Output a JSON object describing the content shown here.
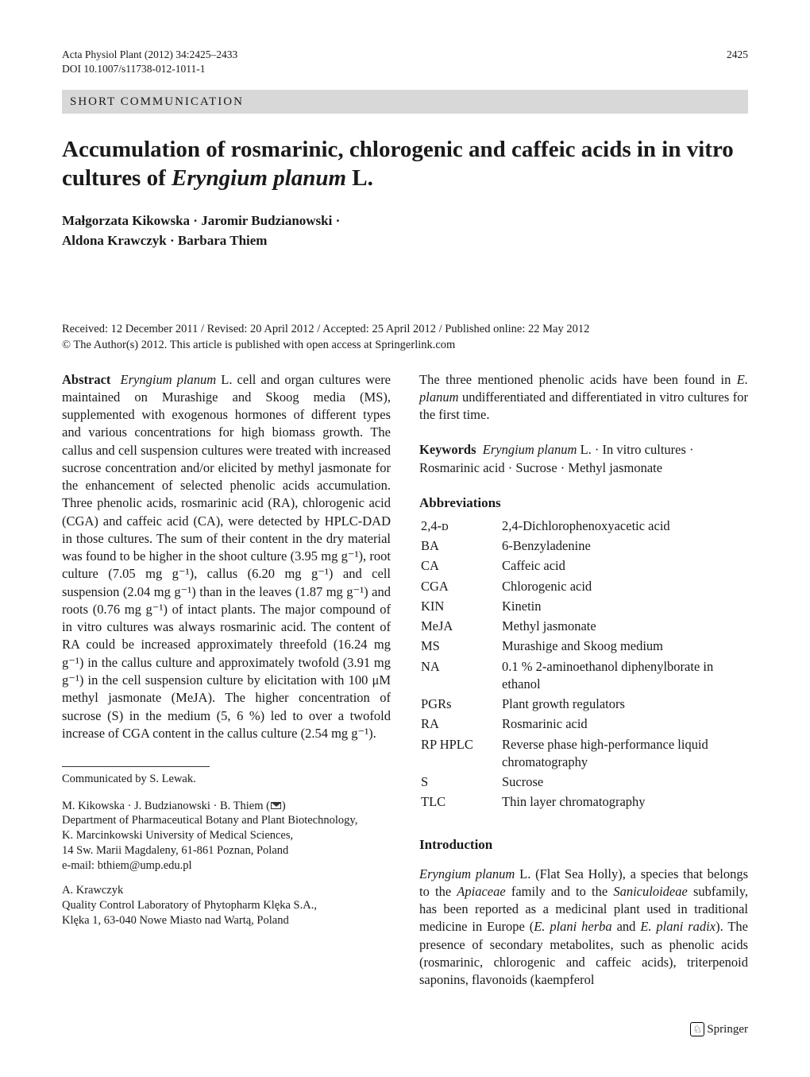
{
  "header": {
    "journal_line": "Acta Physiol Plant (2012) 34:2425–2433",
    "doi_line": "DOI 10.1007/s11738-012-1011-1",
    "page_number": "2425",
    "article_type": "SHORT COMMUNICATION"
  },
  "title_parts": {
    "pre": "Accumulation of rosmarinic, chlorogenic and caffeic acids in in vitro cultures of ",
    "species": "Eryngium planum",
    "post": " L."
  },
  "authors_line1": "Małgorzata Kikowska · Jaromir Budzianowski ·",
  "authors_line2": "Aldona Krawczyk · Barbara Thiem",
  "dates_line1": "Received: 12 December 2011 / Revised: 20 April 2012 / Accepted: 25 April 2012 / Published online: 22 May 2012",
  "dates_line2": "© The Author(s) 2012. This article is published with open access at Springerlink.com",
  "abstract": {
    "label": "Abstract",
    "lead_species": "Eryngium planum",
    "body": " L. cell and organ cultures were maintained on Murashige and Skoog media (MS), supplemented with exogenous hormones of different types and various concentrations for high biomass growth. The callus and cell suspension cultures were treated with increased sucrose concentration and/or elicited by methyl jasmonate for the enhancement of selected phenolic acids accumulation. Three phenolic acids, rosmarinic acid (RA), chlorogenic acid (CGA) and caffeic acid (CA), were detected by HPLC-DAD in those cultures. The sum of their content in the dry material was found to be higher in the shoot culture (3.95 mg g⁻¹), root culture (7.05 mg g⁻¹), callus (6.20 mg g⁻¹) and cell suspension (2.04 mg g⁻¹) than in the leaves (1.87 mg g⁻¹) and roots (0.76 mg g⁻¹) of intact plants. The major compound of in vitro cultures was always rosmarinic acid. The content of RA could be increased approximately threefold (16.24 mg g⁻¹) in the callus culture and approximately twofold (3.91 mg g⁻¹) in the cell suspension culture by elicitation with 100 μM methyl jasmonate (MeJA). The higher concentration of sucrose (S) in the medium (5, 6 %) led to over a twofold increase of CGA content in the callus culture (2.54 mg g⁻¹)."
  },
  "right_lead": {
    "text_pre": "The three mentioned phenolic acids have been found in ",
    "species": "E. planum",
    "text_post": " undifferentiated and differentiated in vitro cultures for the first time."
  },
  "keywords": {
    "label": "Keywords",
    "species": "Eryngium planum",
    "rest": " L. · In vitro cultures · Rosmarinic acid · Sucrose · Methyl jasmonate"
  },
  "abbrev_heading": "Abbreviations",
  "abbreviations": [
    {
      "k": "2,4-ᴅ",
      "v": "2,4-Dichlorophenoxyacetic acid"
    },
    {
      "k": "BA",
      "v": "6-Benzyladenine"
    },
    {
      "k": "CA",
      "v": "Caffeic acid"
    },
    {
      "k": "CGA",
      "v": "Chlorogenic acid"
    },
    {
      "k": "KIN",
      "v": "Kinetin"
    },
    {
      "k": "MeJA",
      "v": "Methyl jasmonate"
    },
    {
      "k": "MS",
      "v": "Murashige and Skoog medium"
    },
    {
      "k": "NA",
      "v": "0.1 % 2-aminoethanol diphenylborate in ethanol"
    },
    {
      "k": "PGRs",
      "v": "Plant growth regulators"
    },
    {
      "k": "RA",
      "v": "Rosmarinic acid"
    },
    {
      "k": "RP HPLC",
      "v": "Reverse phase high-performance liquid chromatography"
    },
    {
      "k": "S",
      "v": "Sucrose"
    },
    {
      "k": "TLC",
      "v": "Thin layer chromatography"
    }
  ],
  "intro_heading": "Introduction",
  "intro": {
    "species1": "Eryngium planum",
    "text1": " L. (Flat Sea Holly), a species that belongs to the ",
    "fam1": "Apiaceae",
    "text2": " family and to the ",
    "fam2": "Saniculoideae",
    "text3": " subfamily, has been reported as a medicinal plant used in traditional medicine in Europe (",
    "herba": "E. plani herba",
    "text4": " and ",
    "radix": "E. plani radix",
    "text5": "). The presence of secondary metabolites, such as phenolic acids (rosmarinic, chlorogenic and caffeic acids), triterpenoid saponins, flavonoids (kaempferol"
  },
  "communicated": "Communicated by S. Lewak.",
  "affil_a": {
    "line1_pre": "M. Kikowska · J. Budzianowski · B. Thiem (",
    "line1_post": ")",
    "line2": "Department of Pharmaceutical Botany and Plant Biotechnology,",
    "line3": "K. Marcinkowski University of Medical Sciences,",
    "line4": "14 Sw. Marii Magdaleny, 61-861 Poznan, Poland",
    "line5": "e-mail: bthiem@ump.edu.pl"
  },
  "affil_b": {
    "line1": "A. Krawczyk",
    "line2": "Quality Control Laboratory of Phytopharm Klęka S.A.,",
    "line3": "Klęka 1, 63-040 Nowe Miasto nad Wartą, Poland"
  },
  "publisher_name": "Springer",
  "colors": {
    "type_bar_bg": "#d8d8d8",
    "text": "#1a1a1a",
    "bg": "#ffffff"
  },
  "typography": {
    "body_fontsize_pt": 12,
    "title_fontsize_pt": 22,
    "meta_fontsize_pt": 10,
    "font_family": "Times New Roman"
  }
}
